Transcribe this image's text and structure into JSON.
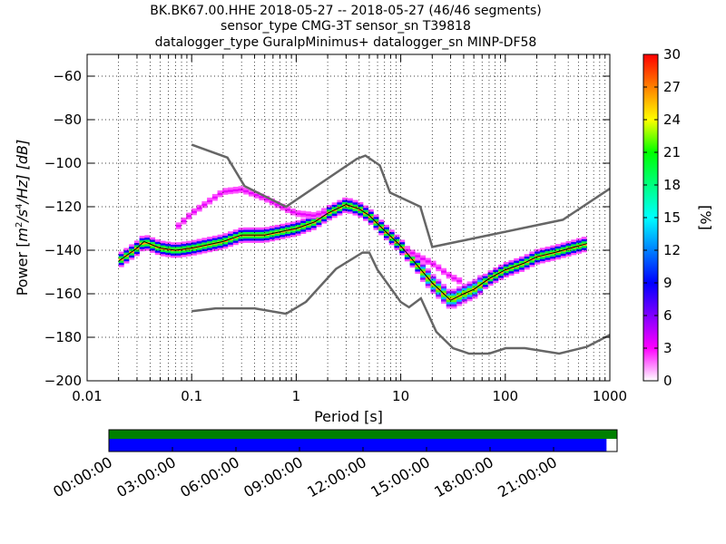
{
  "chart_data": [
    {
      "type": "heatmap",
      "title": [
        "BK.BK67.00.HHE   2018-05-27 -- 2018-05-27  (46/46 segments)",
        "sensor_type CMG-3T sensor_sn T39818",
        "datalogger_type GuralpMinimus+ datalogger_sn MINP-DF58"
      ],
      "xlabel": "Period [s]",
      "ylabel": "Power [m²/s⁴/Hz] [dB]",
      "ylabel_parts": {
        "prefix": "Power [",
        "unit": "m",
        "sup1": "2",
        "mid": "/s",
        "sup2": "4",
        "suffix": "/Hz] [dB]"
      },
      "x_scale": "log",
      "xlim": [
        0.01,
        1000
      ],
      "ylim": [
        -200,
        -50
      ],
      "x_ticks": [
        {
          "v": 0.01,
          "label": "0.01"
        },
        {
          "v": 0.1,
          "label": "0.1"
        },
        {
          "v": 1,
          "label": "1"
        },
        {
          "v": 10,
          "label": "10"
        },
        {
          "v": 100,
          "label": "100"
        },
        {
          "v": 1000,
          "label": "1000"
        }
      ],
      "y_ticks": [
        {
          "v": -60,
          "label": "−60"
        },
        {
          "v": -80,
          "label": "−80"
        },
        {
          "v": -100,
          "label": "−100"
        },
        {
          "v": -120,
          "label": "−120"
        },
        {
          "v": -140,
          "label": "−140"
        },
        {
          "v": -160,
          "label": "−160"
        },
        {
          "v": -180,
          "label": "−180"
        },
        {
          "v": -200,
          "label": "−200"
        }
      ],
      "grid": true,
      "colorbar": {
        "label": "[%]",
        "range": [
          0,
          30
        ],
        "ticks": [
          {
            "v": 0,
            "label": "0"
          },
          {
            "v": 3,
            "label": "3"
          },
          {
            "v": 6,
            "label": "6"
          },
          {
            "v": 9,
            "label": "9"
          },
          {
            "v": 12,
            "label": "12"
          },
          {
            "v": 15,
            "label": "15"
          },
          {
            "v": 18,
            "label": "18"
          },
          {
            "v": 21,
            "label": "21"
          },
          {
            "v": 24,
            "label": "24"
          },
          {
            "v": 27,
            "label": "27"
          },
          {
            "v": 30,
            "label": "30"
          }
        ],
        "colors": [
          "#ffffff",
          "#ff00ff",
          "#8000ff",
          "#0000ff",
          "#0080ff",
          "#00ffff",
          "#00ff80",
          "#00ff00",
          "#ffff00",
          "#ff8000",
          "#ff0000"
        ]
      },
      "noise_models": [
        {
          "name": "NHNM",
          "color": "#666666",
          "points": [
            [
              0.1,
              -91.5
            ],
            [
              0.22,
              -97.4
            ],
            [
              0.32,
              -110.5
            ],
            [
              0.8,
              -120
            ],
            [
              3.8,
              -98
            ],
            [
              4.6,
              -96.5
            ],
            [
              6.3,
              -101
            ],
            [
              7.9,
              -113.5
            ],
            [
              15.4,
              -120
            ],
            [
              20,
              -138.5
            ],
            [
              354.8,
              -126
            ],
            [
              10000,
              -80
            ]
          ]
        },
        {
          "name": "NLNM",
          "color": "#666666",
          "points": [
            [
              0.1,
              -168
            ],
            [
              0.17,
              -166.7
            ],
            [
              0.4,
              -166.7
            ],
            [
              0.8,
              -169.2
            ],
            [
              1.24,
              -163.7
            ],
            [
              2.4,
              -148.6
            ],
            [
              4.3,
              -141.1
            ],
            [
              5,
              -141.1
            ],
            [
              6,
              -149
            ],
            [
              10,
              -163.8
            ],
            [
              12,
              -166.2
            ],
            [
              15.6,
              -162.1
            ],
            [
              21.9,
              -177.5
            ],
            [
              31.6,
              -185
            ],
            [
              45,
              -187.5
            ],
            [
              70,
              -187.5
            ],
            [
              101,
              -185
            ],
            [
              154,
              -185
            ],
            [
              328,
              -187.5
            ],
            [
              600,
              -184.4
            ],
            [
              1000,
              -178.9
            ]
          ]
        }
      ],
      "mode_curve": {
        "color": "#000000",
        "points": [
          [
            0.02,
            -145
          ],
          [
            0.03,
            -139
          ],
          [
            0.035,
            -136
          ],
          [
            0.05,
            -139
          ],
          [
            0.07,
            -140
          ],
          [
            0.1,
            -139
          ],
          [
            0.2,
            -136
          ],
          [
            0.3,
            -133
          ],
          [
            0.5,
            -133
          ],
          [
            1,
            -130
          ],
          [
            1.5,
            -127
          ],
          [
            2,
            -123
          ],
          [
            3,
            -119
          ],
          [
            4,
            -121
          ],
          [
            5,
            -124
          ],
          [
            7,
            -131
          ],
          [
            10,
            -138
          ],
          [
            15,
            -148
          ],
          [
            20,
            -155
          ],
          [
            30,
            -163
          ],
          [
            40,
            -160
          ],
          [
            50,
            -158
          ],
          [
            70,
            -153
          ],
          [
            100,
            -149
          ],
          [
            150,
            -146
          ],
          [
            200,
            -143
          ],
          [
            300,
            -141
          ],
          [
            500,
            -138
          ],
          [
            600,
            -137
          ]
        ]
      },
      "density": {
        "main_band": [
          [
            0.02,
            -145
          ],
          [
            0.03,
            -139
          ],
          [
            0.035,
            -136
          ],
          [
            0.05,
            -139
          ],
          [
            0.07,
            -140
          ],
          [
            0.1,
            -139
          ],
          [
            0.2,
            -136
          ],
          [
            0.3,
            -133
          ],
          [
            0.5,
            -133
          ],
          [
            1,
            -130
          ],
          [
            1.5,
            -127
          ],
          [
            2,
            -123
          ],
          [
            3,
            -119
          ],
          [
            4,
            -121
          ],
          [
            5,
            -124
          ],
          [
            7,
            -131
          ],
          [
            10,
            -138
          ],
          [
            15,
            -148
          ],
          [
            20,
            -155
          ],
          [
            30,
            -163
          ],
          [
            40,
            -160
          ],
          [
            50,
            -158
          ],
          [
            70,
            -153
          ],
          [
            100,
            -149
          ],
          [
            150,
            -146
          ],
          [
            200,
            -143
          ],
          [
            300,
            -141
          ],
          [
            500,
            -138
          ],
          [
            600,
            -137
          ]
        ],
        "upper_band": [
          [
            0.07,
            -130
          ],
          [
            0.1,
            -123
          ],
          [
            0.2,
            -113
          ],
          [
            0.3,
            -112
          ],
          [
            0.5,
            -116
          ],
          [
            0.8,
            -121
          ],
          [
            1,
            -123
          ],
          [
            1.5,
            -124
          ],
          [
            2,
            -122
          ],
          [
            3,
            -119
          ],
          [
            4,
            -121
          ],
          [
            6,
            -129
          ],
          [
            9,
            -137
          ],
          [
            15,
            -143
          ],
          [
            20,
            -146
          ],
          [
            30,
            -152
          ],
          [
            40,
            -155
          ]
        ]
      }
    },
    {
      "type": "timeline",
      "range_hours": [
        0,
        24
      ],
      "tick_labels": [
        {
          "h": 0,
          "label": "00:00:00"
        },
        {
          "h": 3,
          "label": "03:00:00"
        },
        {
          "h": 6,
          "label": "06:00:00"
        },
        {
          "h": 9,
          "label": "09:00:00"
        },
        {
          "h": 12,
          "label": "12:00:00"
        },
        {
          "h": 15,
          "label": "15:00:00"
        },
        {
          "h": 18,
          "label": "18:00:00"
        },
        {
          "h": 21,
          "label": "21:00:00"
        }
      ],
      "bars": [
        {
          "name": "used-segments",
          "color": "#008000",
          "start_h": 0,
          "end_h": 24
        },
        {
          "name": "data-coverage",
          "color": "#0000ff",
          "start_h": 0,
          "end_h": 23.5
        }
      ]
    }
  ]
}
